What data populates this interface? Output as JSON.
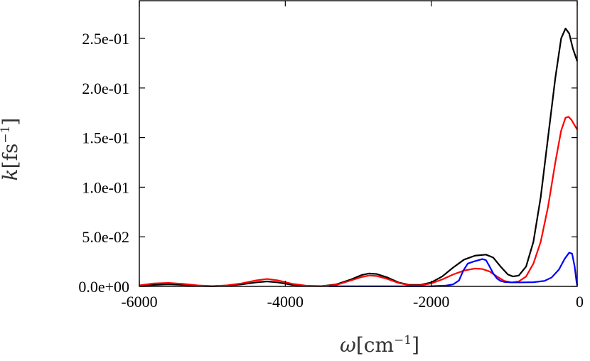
{
  "chart_data": {
    "type": "line",
    "xlabel": {
      "symbol": "ω",
      "unit": "cm",
      "exponent": "−1"
    },
    "ylabel": {
      "symbol": "k",
      "unit": "fs",
      "exponent": "−1"
    },
    "xlim": [
      -6000,
      0
    ],
    "ylim": [
      0,
      0.288
    ],
    "xticks": [
      -6000,
      -4000,
      -2000,
      0
    ],
    "xtick_labels": [
      "-6000",
      "-4000",
      "-2000",
      "0"
    ],
    "yticks": [
      0,
      0.05,
      0.1,
      0.15,
      0.2,
      0.25
    ],
    "ytick_labels": [
      "0.0e+00",
      "5.0e-02",
      "1.0e-01",
      "1.5e-01",
      "2.0e-01",
      "2.5e-01"
    ],
    "grid": false,
    "series": [
      {
        "color": "#000000",
        "points": [
          [
            -6000,
            0.0005
          ],
          [
            -5800,
            0.0015
          ],
          [
            -5600,
            0.002
          ],
          [
            -5400,
            0.0015
          ],
          [
            -5200,
            0.0005
          ],
          [
            -5000,
            0.0002
          ],
          [
            -4800,
            0.0008
          ],
          [
            -4600,
            0.002
          ],
          [
            -4400,
            0.004
          ],
          [
            -4250,
            0.005
          ],
          [
            -4100,
            0.004
          ],
          [
            -3900,
            0.0015
          ],
          [
            -3700,
            0.0004
          ],
          [
            -3500,
            0.0003
          ],
          [
            -3300,
            0.002
          ],
          [
            -3100,
            0.007
          ],
          [
            -2950,
            0.0115
          ],
          [
            -2850,
            0.013
          ],
          [
            -2750,
            0.0125
          ],
          [
            -2600,
            0.009
          ],
          [
            -2450,
            0.004
          ],
          [
            -2300,
            0.0015
          ],
          [
            -2150,
            0.0015
          ],
          [
            -2000,
            0.004
          ],
          [
            -1850,
            0.01
          ],
          [
            -1700,
            0.019
          ],
          [
            -1550,
            0.027
          ],
          [
            -1400,
            0.031
          ],
          [
            -1250,
            0.032
          ],
          [
            -1150,
            0.029
          ],
          [
            -1050,
            0.02
          ],
          [
            -950,
            0.012
          ],
          [
            -880,
            0.01
          ],
          [
            -800,
            0.011
          ],
          [
            -700,
            0.02
          ],
          [
            -600,
            0.045
          ],
          [
            -500,
            0.09
          ],
          [
            -400,
            0.15
          ],
          [
            -300,
            0.21
          ],
          [
            -220,
            0.25
          ],
          [
            -160,
            0.26
          ],
          [
            -110,
            0.255
          ],
          [
            -60,
            0.24
          ],
          [
            0,
            0.227
          ]
        ]
      },
      {
        "color": "#ff0000",
        "points": [
          [
            -6000,
            0.001
          ],
          [
            -5800,
            0.003
          ],
          [
            -5600,
            0.0035
          ],
          [
            -5400,
            0.0025
          ],
          [
            -5200,
            0.001
          ],
          [
            -5000,
            0.0003
          ],
          [
            -4800,
            0.001
          ],
          [
            -4600,
            0.003
          ],
          [
            -4400,
            0.006
          ],
          [
            -4250,
            0.0075
          ],
          [
            -4100,
            0.006
          ],
          [
            -3900,
            0.0025
          ],
          [
            -3700,
            0.0006
          ],
          [
            -3500,
            0.0003
          ],
          [
            -3300,
            0.0015
          ],
          [
            -3100,
            0.006
          ],
          [
            -2950,
            0.0095
          ],
          [
            -2850,
            0.011
          ],
          [
            -2750,
            0.0105
          ],
          [
            -2600,
            0.0075
          ],
          [
            -2450,
            0.0035
          ],
          [
            -2300,
            0.001
          ],
          [
            -2150,
            0.001
          ],
          [
            -2000,
            0.003
          ],
          [
            -1850,
            0.007
          ],
          [
            -1700,
            0.012
          ],
          [
            -1550,
            0.016
          ],
          [
            -1400,
            0.018
          ],
          [
            -1300,
            0.0175
          ],
          [
            -1200,
            0.015
          ],
          [
            -1100,
            0.01
          ],
          [
            -1000,
            0.0055
          ],
          [
            -900,
            0.004
          ],
          [
            -800,
            0.005
          ],
          [
            -700,
            0.01
          ],
          [
            -600,
            0.023
          ],
          [
            -500,
            0.045
          ],
          [
            -400,
            0.08
          ],
          [
            -300,
            0.125
          ],
          [
            -220,
            0.157
          ],
          [
            -160,
            0.17
          ],
          [
            -120,
            0.171
          ],
          [
            -80,
            0.168
          ],
          [
            -40,
            0.163
          ],
          [
            0,
            0.158
          ]
        ]
      },
      {
        "color": "#0000ff",
        "points": [
          [
            -3400,
            0.0001
          ],
          [
            -3000,
            0.0001
          ],
          [
            -2600,
            0.0001
          ],
          [
            -2200,
            0.0001
          ],
          [
            -2000,
            0.0002
          ],
          [
            -1800,
            0.0008
          ],
          [
            -1700,
            0.002
          ],
          [
            -1620,
            0.006
          ],
          [
            -1560,
            0.016
          ],
          [
            -1500,
            0.023
          ],
          [
            -1420,
            0.025
          ],
          [
            -1350,
            0.0265
          ],
          [
            -1300,
            0.0275
          ],
          [
            -1250,
            0.0265
          ],
          [
            -1200,
            0.02
          ],
          [
            -1150,
            0.013
          ],
          [
            -1100,
            0.008
          ],
          [
            -1050,
            0.0055
          ],
          [
            -1000,
            0.0045
          ],
          [
            -900,
            0.004
          ],
          [
            -800,
            0.004
          ],
          [
            -600,
            0.0042
          ],
          [
            -450,
            0.0055
          ],
          [
            -350,
            0.009
          ],
          [
            -250,
            0.017
          ],
          [
            -170,
            0.028
          ],
          [
            -110,
            0.034
          ],
          [
            -70,
            0.033
          ],
          [
            -35,
            0.02
          ],
          [
            -10,
            0.005
          ],
          [
            0,
            0.001
          ]
        ]
      }
    ]
  }
}
